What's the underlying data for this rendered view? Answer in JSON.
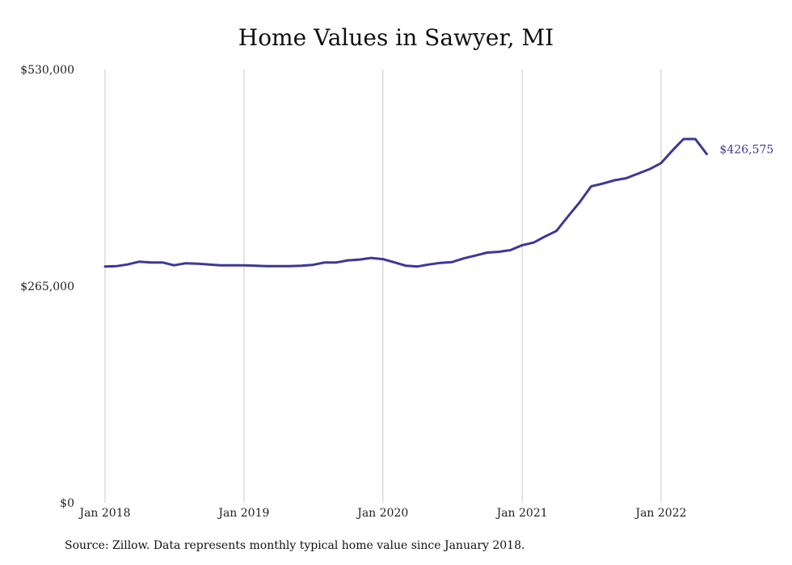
{
  "title": "Home Values in Sawyer, MI",
  "source": "Source: Zillow. Data represents monthly typical home value since January 2018.",
  "colors": {
    "line": "#3d3799",
    "grid": "#c9c9c9",
    "text": "#222222"
  },
  "chart_data": {
    "type": "line",
    "title": "Home Values in Sawyer, MI",
    "xlabel": "",
    "ylabel": "",
    "ylim": [
      0,
      530000
    ],
    "y_ticks": [
      {
        "value": 0,
        "label": "$0"
      },
      {
        "value": 265000,
        "label": "$265,000"
      },
      {
        "value": 530000,
        "label": "$530,000"
      }
    ],
    "x_ticks": [
      {
        "value": "2018-01",
        "label": "Jan 2018"
      },
      {
        "value": "2019-01",
        "label": "Jan 2019"
      },
      {
        "value": "2020-01",
        "label": "Jan 2020"
      },
      {
        "value": "2021-01",
        "label": "Jan 2021"
      },
      {
        "value": "2022-01",
        "label": "Jan 2022"
      }
    ],
    "grid": "vertical",
    "series": [
      {
        "end_label": "$426,575",
        "x": [
          "2018-01",
          "2018-02",
          "2018-03",
          "2018-04",
          "2018-05",
          "2018-06",
          "2018-07",
          "2018-08",
          "2018-09",
          "2018-10",
          "2018-11",
          "2018-12",
          "2019-01",
          "2019-02",
          "2019-03",
          "2019-04",
          "2019-05",
          "2019-06",
          "2019-07",
          "2019-08",
          "2019-09",
          "2019-10",
          "2019-11",
          "2019-12",
          "2020-01",
          "2020-02",
          "2020-03",
          "2020-04",
          "2020-05",
          "2020-06",
          "2020-07",
          "2020-08",
          "2020-09",
          "2020-10",
          "2020-11",
          "2020-12",
          "2021-01",
          "2021-02",
          "2021-03",
          "2021-04",
          "2021-05",
          "2021-06",
          "2021-07",
          "2021-08",
          "2021-09",
          "2021-10",
          "2021-11",
          "2021-12",
          "2022-01",
          "2022-02",
          "2022-03",
          "2022-04",
          "2022-05"
        ],
        "values": [
          289000,
          289500,
          291500,
          295000,
          294000,
          294000,
          290500,
          293000,
          292500,
          291500,
          290500,
          290500,
          290500,
          290000,
          289500,
          289500,
          289500,
          290000,
          291000,
          294000,
          294000,
          296500,
          297500,
          299500,
          298000,
          294000,
          290000,
          289000,
          291500,
          293500,
          294500,
          299000,
          302500,
          306000,
          307000,
          309000,
          315000,
          318500,
          325500,
          332500,
          350000,
          367500,
          387000,
          390500,
          394500,
          397000,
          402500,
          408000,
          415500,
          431500,
          445000,
          455500,
          426575
        ]
      }
    ]
  }
}
